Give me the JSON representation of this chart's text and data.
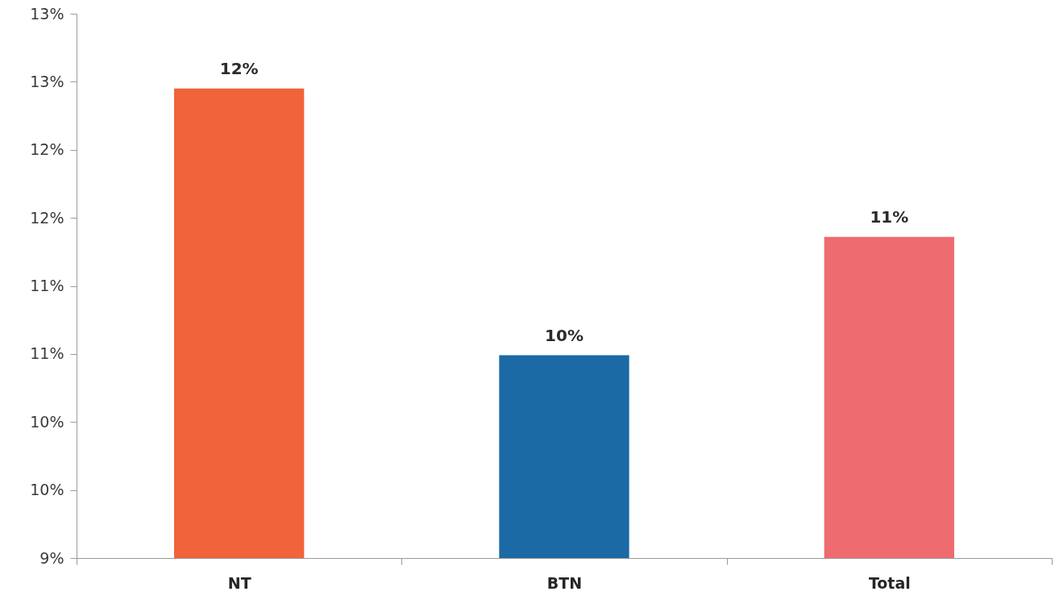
{
  "chart_data": {
    "type": "bar",
    "categories": [
      "NT",
      "BTN",
      "Total"
    ],
    "values": [
      12.45,
      10.49,
      11.36
    ],
    "value_labels": [
      "12%",
      "10%",
      "11%"
    ],
    "colors": [
      "#f1633b",
      "#1b6aa5",
      "#ee6b6f"
    ],
    "ylim": [
      9,
      13
    ],
    "yticks": [
      {
        "value": 9,
        "label": "9%"
      },
      {
        "value": 9.5,
        "label": "10%"
      },
      {
        "value": 10,
        "label": "10%"
      },
      {
        "value": 10.5,
        "label": "11%"
      },
      {
        "value": 11,
        "label": "11%"
      },
      {
        "value": 11.5,
        "label": "12%"
      },
      {
        "value": 12,
        "label": "12%"
      },
      {
        "value": 12.5,
        "label": "13%"
      },
      {
        "value": 13,
        "label": "13%"
      }
    ]
  }
}
